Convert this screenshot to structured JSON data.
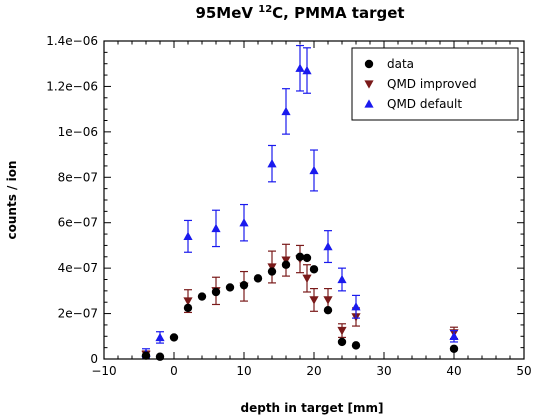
{
  "chart_data": {
    "type": "scatter",
    "title": {
      "prefix": "95MeV ",
      "superscript": "12",
      "suffix": "C, PMMA target"
    },
    "xlabel": "depth in target [mm]",
    "ylabel": "counts / ion",
    "xlim": [
      -10,
      50
    ],
    "ylim": [
      0,
      1.4e-06
    ],
    "x_ticks": [
      {
        "value": -10,
        "label": "−10"
      },
      {
        "value": 0,
        "label": "0"
      },
      {
        "value": 10,
        "label": "10"
      },
      {
        "value": 20,
        "label": "20"
      },
      {
        "value": 30,
        "label": "30"
      },
      {
        "value": 40,
        "label": "40"
      },
      {
        "value": 50,
        "label": "50"
      }
    ],
    "y_ticks": [
      {
        "value": 0,
        "label": "0"
      },
      {
        "value": 2e-07,
        "label": "2e−07"
      },
      {
        "value": 4e-07,
        "label": "4e−07"
      },
      {
        "value": 6e-07,
        "label": "6e−07"
      },
      {
        "value": 8e-07,
        "label": "8e−07"
      },
      {
        "value": 1e-06,
        "label": "1e−06"
      },
      {
        "value": 1.2e-06,
        "label": "1.2e−06"
      },
      {
        "value": 1.4e-06,
        "label": "1.4e−06"
      }
    ],
    "legend_position": "top-right",
    "grid": false,
    "series": [
      {
        "name": "data",
        "marker": "circle",
        "color": "#000000",
        "points": [
          {
            "x": -4,
            "y": 1.5e-08
          },
          {
            "x": -2,
            "y": 1e-08
          },
          {
            "x": 0,
            "y": 9.5e-08
          },
          {
            "x": 2,
            "y": 2.25e-07
          },
          {
            "x": 4,
            "y": 2.75e-07
          },
          {
            "x": 6,
            "y": 2.95e-07
          },
          {
            "x": 8,
            "y": 3.15e-07
          },
          {
            "x": 10,
            "y": 3.25e-07
          },
          {
            "x": 12,
            "y": 3.55e-07
          },
          {
            "x": 14,
            "y": 3.85e-07
          },
          {
            "x": 16,
            "y": 4.15e-07
          },
          {
            "x": 18,
            "y": 4.5e-07
          },
          {
            "x": 19,
            "y": 4.45e-07
          },
          {
            "x": 20,
            "y": 3.95e-07
          },
          {
            "x": 22,
            "y": 2.15e-07
          },
          {
            "x": 24,
            "y": 7.5e-08
          },
          {
            "x": 26,
            "y": 6e-08
          },
          {
            "x": 40,
            "y": 4.5e-08
          }
        ]
      },
      {
        "name": "QMD improved",
        "marker": "triangle-down",
        "color": "#7a1a1a",
        "points": [
          {
            "x": -4,
            "y": 2e-08,
            "err": 1.5e-08
          },
          {
            "x": 2,
            "y": 2.55e-07,
            "err": 5e-08
          },
          {
            "x": 6,
            "y": 3e-07,
            "err": 6e-08
          },
          {
            "x": 10,
            "y": 3.2e-07,
            "err": 6.5e-08
          },
          {
            "x": 14,
            "y": 4.05e-07,
            "err": 7e-08
          },
          {
            "x": 16,
            "y": 4.35e-07,
            "err": 7e-08
          },
          {
            "x": 18,
            "y": 4.4e-07,
            "err": 6e-08
          },
          {
            "x": 19,
            "y": 3.55e-07,
            "err": 6e-08
          },
          {
            "x": 20,
            "y": 2.6e-07,
            "err": 5e-08
          },
          {
            "x": 22,
            "y": 2.6e-07,
            "err": 5e-08
          },
          {
            "x": 24,
            "y": 1.25e-07,
            "err": 3e-08
          },
          {
            "x": 26,
            "y": 1.85e-07,
            "err": 4e-08
          },
          {
            "x": 40,
            "y": 1.15e-07,
            "err": 2.5e-08
          }
        ]
      },
      {
        "name": "QMD default",
        "marker": "triangle-up",
        "color": "#1a1aee",
        "points": [
          {
            "x": -4,
            "y": 2.5e-08,
            "err": 2e-08
          },
          {
            "x": -2,
            "y": 9.5e-08,
            "err": 2.5e-08
          },
          {
            "x": 2,
            "y": 5.4e-07,
            "err": 7e-08
          },
          {
            "x": 6,
            "y": 5.75e-07,
            "err": 8e-08
          },
          {
            "x": 10,
            "y": 6e-07,
            "err": 8e-08
          },
          {
            "x": 14,
            "y": 8.6e-07,
            "err": 8e-08
          },
          {
            "x": 16,
            "y": 1.09e-06,
            "err": 1e-07
          },
          {
            "x": 18,
            "y": 1.28e-06,
            "err": 1e-07
          },
          {
            "x": 19,
            "y": 1.27e-06,
            "err": 1e-07
          },
          {
            "x": 20,
            "y": 8.3e-07,
            "err": 9e-08
          },
          {
            "x": 22,
            "y": 4.95e-07,
            "err": 7e-08
          },
          {
            "x": 24,
            "y": 3.5e-07,
            "err": 5e-08
          },
          {
            "x": 26,
            "y": 2.3e-07,
            "err": 5e-08
          },
          {
            "x": 40,
            "y": 1e-07,
            "err": 2.5e-08
          }
        ]
      }
    ]
  }
}
